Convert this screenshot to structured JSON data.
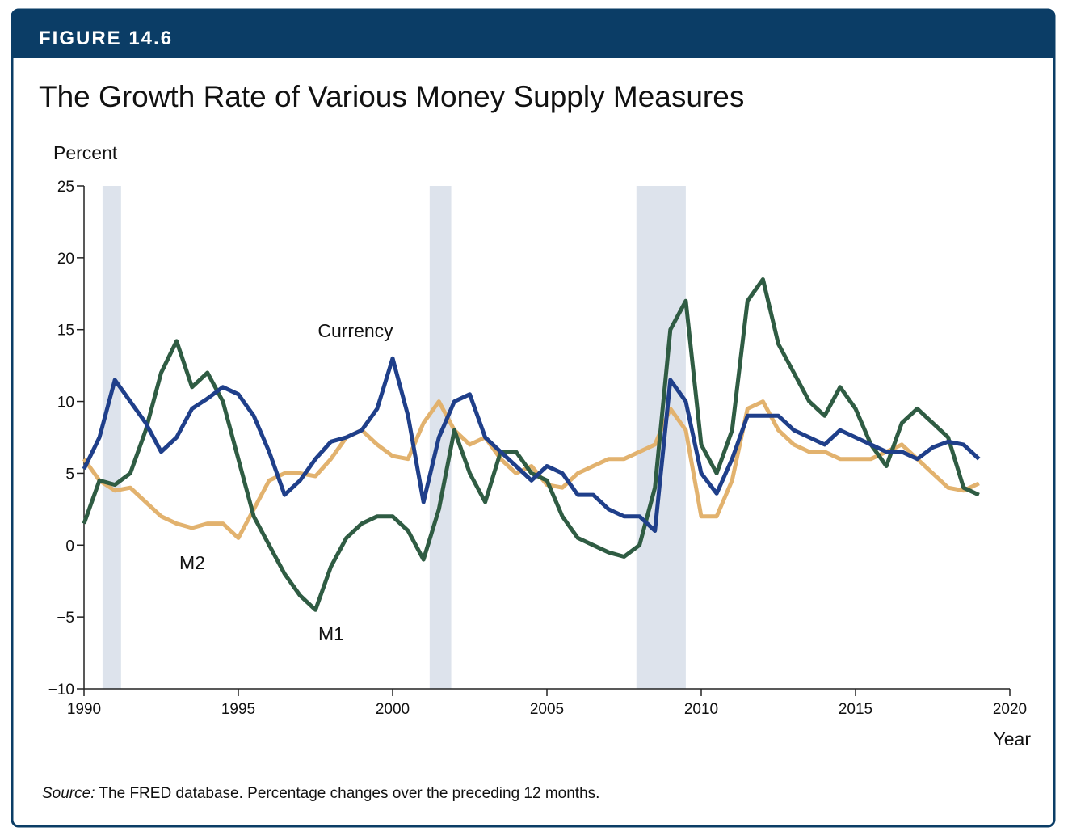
{
  "figure_label": "FIGURE 14.6",
  "chart_data": {
    "type": "line",
    "title": "The Growth Rate of Various Money Supply Measures",
    "ylabel": "Percent",
    "xlabel": "Year",
    "xlim": [
      1990,
      2020
    ],
    "xticks": [
      1990,
      1995,
      2000,
      2005,
      2010,
      2015,
      2020
    ],
    "ylim": [
      -10,
      25
    ],
    "yticks": [
      {
        "value": -10,
        "label": "−10"
      },
      {
        "value": -5,
        "label": "−5"
      },
      0,
      5,
      10,
      15,
      20,
      25
    ],
    "recessions": [
      [
        1990.6,
        1991.2
      ],
      [
        2001.2,
        2001.9
      ],
      [
        2007.9,
        2009.5
      ]
    ],
    "recession_color": "#dde3ec",
    "x": [
      1990,
      1990.5,
      1991,
      1991.5,
      1992,
      1992.5,
      1993,
      1993.5,
      1994,
      1994.5,
      1995,
      1995.5,
      1996,
      1996.5,
      1997,
      1997.5,
      1998,
      1998.5,
      1999,
      1999.5,
      2000,
      2000.5,
      2001,
      2001.5,
      2002,
      2002.5,
      2003,
      2003.5,
      2004,
      2004.5,
      2005,
      2005.5,
      2006,
      2006.5,
      2007,
      2007.5,
      2008,
      2008.5,
      2009,
      2009.5,
      2010,
      2010.5,
      2011,
      2011.5,
      2012,
      2012.5,
      2013,
      2013.5,
      2014,
      2014.5,
      2015,
      2015.5,
      2016,
      2016.5,
      2017,
      2017.5,
      2018,
      2018.5,
      2019
    ],
    "series": [
      {
        "name": "M2",
        "color": "#e2b26e",
        "values": [
          6,
          4.5,
          3.8,
          4,
          3,
          2,
          1.5,
          1.2,
          1.5,
          1.5,
          0.5,
          2.5,
          4.5,
          5,
          5,
          4.8,
          6,
          7.5,
          8,
          7,
          6.2,
          6,
          8.5,
          10,
          8,
          7,
          7.5,
          6,
          5,
          5.5,
          4.2,
          4,
          5,
          5.5,
          6,
          6,
          6.5,
          7,
          9.5,
          8,
          2,
          2,
          4.5,
          9.5,
          10,
          8,
          7,
          6.5,
          6.5,
          6,
          6,
          6,
          6.5,
          7,
          6,
          5,
          4,
          3.8,
          4.3
        ]
      },
      {
        "name": "M1",
        "color": "#2f5c43",
        "values": [
          1.5,
          4.5,
          4.2,
          5,
          8,
          12,
          14.2,
          11,
          12,
          10,
          6,
          2,
          0,
          -2,
          -3.5,
          -4.5,
          -1.5,
          0.5,
          1.5,
          2,
          2,
          1,
          -1,
          2.5,
          8,
          5,
          3,
          6.5,
          6.5,
          5,
          4.5,
          2,
          0.5,
          0,
          -0.5,
          -0.8,
          0,
          4,
          15,
          17,
          7,
          5,
          8,
          17,
          18.5,
          14,
          12,
          10,
          9,
          11,
          9.5,
          7,
          5.5,
          8.5,
          9.5,
          8.5,
          7.5,
          4,
          3.5
        ]
      },
      {
        "name": "Currency",
        "color": "#1f3f8a",
        "values": [
          5.3,
          7.5,
          11.5,
          10,
          8.5,
          6.5,
          7.5,
          9.5,
          10.2,
          11,
          10.5,
          9,
          6.5,
          3.5,
          4.5,
          6,
          7.2,
          7.5,
          8,
          9.5,
          13,
          9,
          3,
          7.5,
          10,
          10.5,
          7.5,
          6.5,
          5.5,
          4.5,
          5.5,
          5,
          3.5,
          3.5,
          2.5,
          2,
          2,
          1,
          11.5,
          10,
          5,
          3.6,
          6,
          9,
          9,
          9,
          8,
          7.5,
          7,
          8,
          7.5,
          7,
          6.5,
          6.5,
          6,
          6.8,
          7.2,
          7,
          6
        ]
      }
    ],
    "source_label": "Source:",
    "source": "The FRED database. Percentage changes over the preceding 12 months."
  }
}
